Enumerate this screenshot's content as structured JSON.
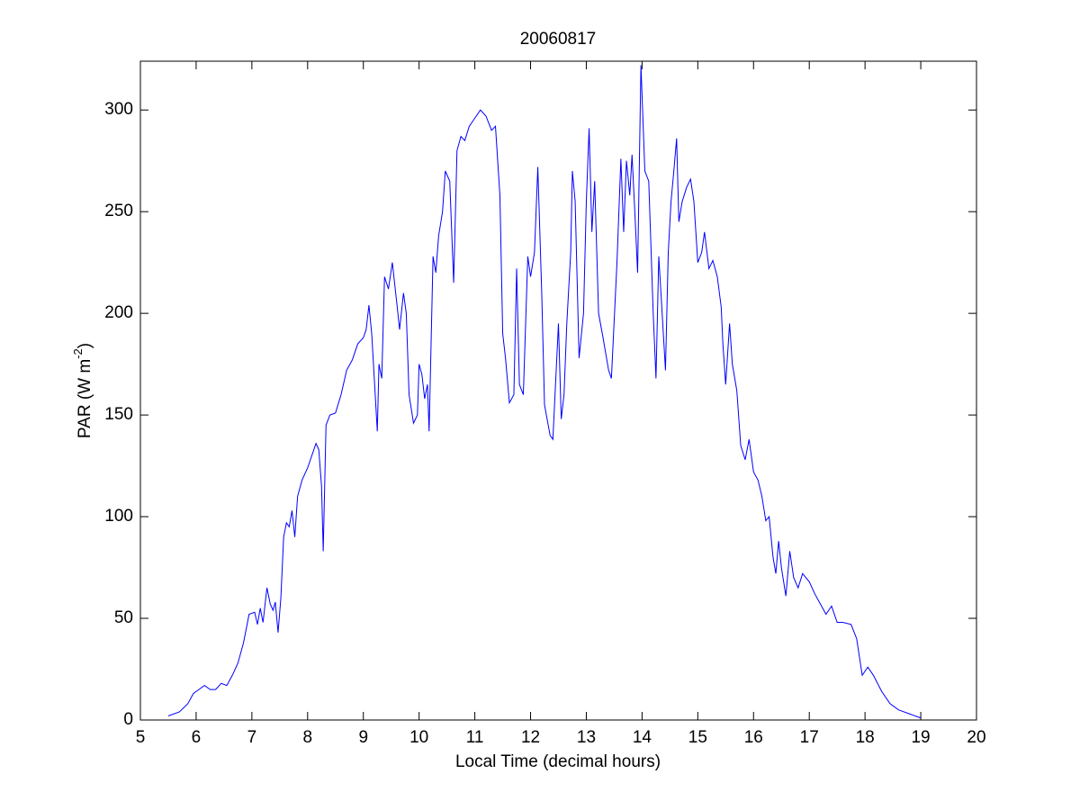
{
  "chart_data": {
    "type": "line",
    "title": "20060817",
    "xlabel": "Local Time (decimal hours)",
    "ylabel": [
      "PAR (W m",
      "-2",
      ")"
    ],
    "xlim": [
      5,
      20
    ],
    "ylim": [
      0,
      324
    ],
    "xticks": [
      5,
      6,
      7,
      8,
      9,
      10,
      11,
      12,
      13,
      14,
      15,
      16,
      17,
      18,
      19,
      20
    ],
    "yticks": [
      0,
      50,
      100,
      150,
      200,
      250,
      300
    ],
    "grid": false,
    "series": [
      {
        "color": "#0000ff",
        "x": [
          5.5,
          5.7,
          5.85,
          5.95,
          6.05,
          6.15,
          6.25,
          6.35,
          6.45,
          6.55,
          6.65,
          6.75,
          6.85,
          6.95,
          7.05,
          7.1,
          7.15,
          7.2,
          7.27,
          7.33,
          7.38,
          7.42,
          7.47,
          7.52,
          7.57,
          7.62,
          7.67,
          7.72,
          7.77,
          7.82,
          7.9,
          8.0,
          8.1,
          8.15,
          8.2,
          8.25,
          8.28,
          8.33,
          8.4,
          8.5,
          8.6,
          8.7,
          8.8,
          8.9,
          9.0,
          9.05,
          9.1,
          9.15,
          9.25,
          9.28,
          9.33,
          9.38,
          9.45,
          9.52,
          9.6,
          9.65,
          9.72,
          9.77,
          9.82,
          9.9,
          9.97,
          10.0,
          10.05,
          10.1,
          10.15,
          10.18,
          10.25,
          10.3,
          10.35,
          10.42,
          10.47,
          10.55,
          10.62,
          10.68,
          10.75,
          10.82,
          10.9,
          11.0,
          11.1,
          11.2,
          11.3,
          11.37,
          11.45,
          11.5,
          11.55,
          11.62,
          11.7,
          11.75,
          11.8,
          11.87,
          11.95,
          12.0,
          12.07,
          12.13,
          12.2,
          12.25,
          12.35,
          12.4,
          12.5,
          12.55,
          12.6,
          12.65,
          12.72,
          12.75,
          12.8,
          12.87,
          12.95,
          13.0,
          13.05,
          13.1,
          13.15,
          13.22,
          13.3,
          13.4,
          13.45,
          13.55,
          13.62,
          13.67,
          13.72,
          13.78,
          13.82,
          13.87,
          13.92,
          13.98,
          14.05,
          14.12,
          14.2,
          14.25,
          14.3,
          14.35,
          14.42,
          14.47,
          14.52,
          14.57,
          14.62,
          14.66,
          14.72,
          14.8,
          14.87,
          14.93,
          15.0,
          15.07,
          15.12,
          15.2,
          15.27,
          15.35,
          15.42,
          15.45,
          15.5,
          15.57,
          15.62,
          15.7,
          15.77,
          15.85,
          15.92,
          16.0,
          16.08,
          16.15,
          16.22,
          16.28,
          16.35,
          16.4,
          16.45,
          16.5,
          16.58,
          16.65,
          16.72,
          16.8,
          16.88,
          17.0,
          17.1,
          17.2,
          17.3,
          17.4,
          17.5,
          17.6,
          17.75,
          17.85,
          17.95,
          18.05,
          18.15,
          18.3,
          18.45,
          18.6,
          18.8,
          19.0
        ],
        "values": [
          2,
          4,
          8,
          13,
          15,
          17,
          15,
          15,
          18,
          17,
          22,
          28,
          38,
          52,
          53,
          47,
          55,
          48,
          65,
          57,
          54,
          58,
          43,
          60,
          90,
          97,
          95,
          103,
          90,
          110,
          118,
          124,
          132,
          136,
          133,
          115,
          83,
          145,
          150,
          151,
          160,
          172,
          177,
          185,
          188,
          192,
          204,
          190,
          142,
          175,
          168,
          218,
          212,
          225,
          205,
          192,
          210,
          200,
          160,
          146,
          150,
          175,
          170,
          158,
          165,
          142,
          228,
          220,
          238,
          250,
          270,
          265,
          215,
          280,
          287,
          285,
          292,
          296,
          300,
          297,
          290,
          292,
          258,
          190,
          178,
          156,
          160,
          222,
          165,
          160,
          228,
          218,
          230,
          272,
          210,
          155,
          140,
          138,
          195,
          148,
          160,
          195,
          230,
          270,
          255,
          178,
          200,
          255,
          291,
          240,
          265,
          200,
          188,
          172,
          168,
          225,
          276,
          240,
          275,
          258,
          278,
          250,
          220,
          322,
          270,
          265,
          200,
          168,
          228,
          205,
          172,
          230,
          255,
          270,
          286,
          245,
          255,
          262,
          266,
          255,
          225,
          230,
          240,
          222,
          226,
          218,
          203,
          185,
          165,
          195,
          175,
          162,
          135,
          128,
          138,
          122,
          118,
          110,
          98,
          100,
          80,
          72,
          88,
          75,
          61,
          83,
          70,
          65,
          72,
          68,
          62,
          57,
          52,
          56,
          48,
          48,
          47,
          40,
          22,
          26,
          22,
          14,
          8,
          5,
          3,
          1
        ]
      }
    ]
  }
}
